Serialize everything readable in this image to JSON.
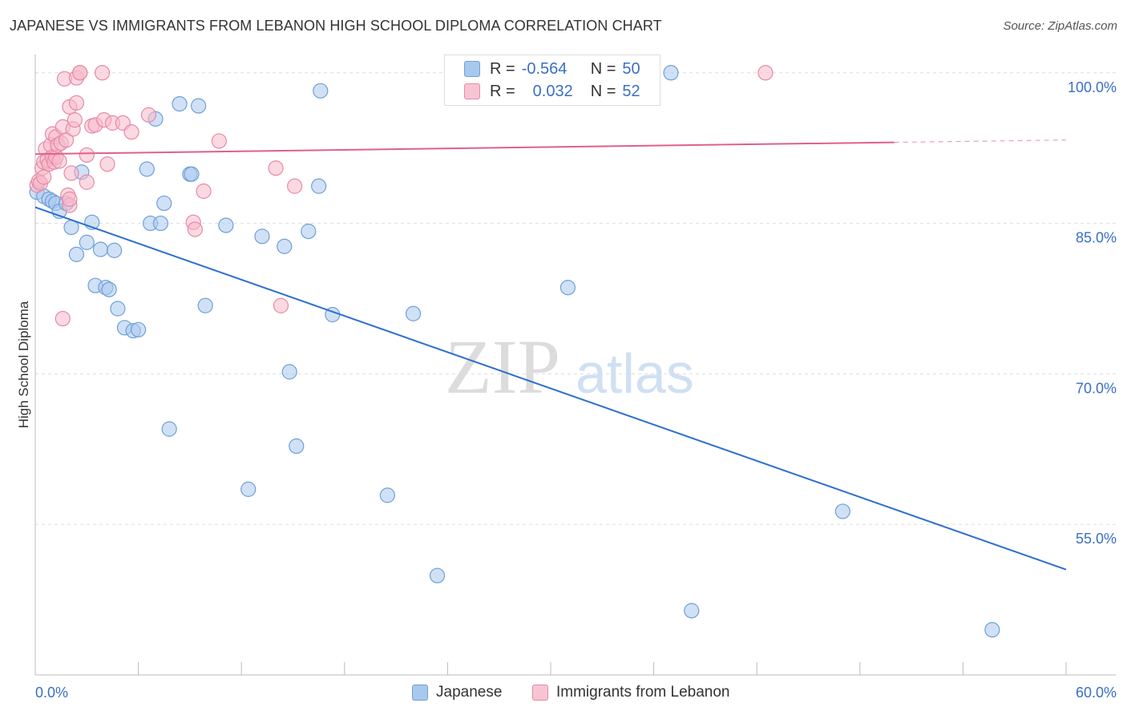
{
  "header": {
    "title": "JAPANESE VS IMMIGRANTS FROM LEBANON HIGH SCHOOL DIPLOMA CORRELATION CHART",
    "source": "Source: ZipAtlas.com"
  },
  "watermark": {
    "zip": "ZIP",
    "atlas": "atlas"
  },
  "legend": {
    "rows": [
      {
        "r_label": "R =",
        "r_value": "-0.564",
        "n_label": "N =",
        "n_value": "50"
      },
      {
        "r_label": "R =",
        "r_value": "0.032",
        "n_label": "N =",
        "n_value": "52"
      }
    ]
  },
  "bottom_legend": {
    "japanese": "Japanese",
    "lebanon": "Immigrants from Lebanon"
  },
  "colors": {
    "blue_fill": "#a9c8ee",
    "blue_stroke": "#6f9fd8",
    "blue_line": "#2c6fd0",
    "pink_fill": "#f7b9cb",
    "pink_stroke": "#e68aa6",
    "pink_line": "#e0608a",
    "tick_label": "#3a6fc4",
    "grid": "#dddddd"
  },
  "chart_data": {
    "type": "scatter",
    "title": "JAPANESE VS IMMIGRANTS FROM LEBANON HIGH SCHOOL DIPLOMA CORRELATION CHART",
    "xlabel": "",
    "ylabel": "High School Diploma",
    "xlim": [
      0,
      60
    ],
    "ylim": [
      40,
      101.5
    ],
    "x_tick_labels": [
      {
        "value": 0,
        "label": "0.0%"
      },
      {
        "value": 60,
        "label": "60.0%"
      }
    ],
    "y_tick_labels": [
      {
        "value": 100,
        "label": "100.0%"
      },
      {
        "value": 85,
        "label": "85.0%"
      },
      {
        "value": 70,
        "label": "70.0%"
      },
      {
        "value": 55,
        "label": "55.0%"
      }
    ],
    "y_grid": [
      100,
      85,
      70,
      55
    ],
    "series": [
      {
        "name": "Japanese",
        "r": -0.564,
        "n": 50,
        "trend": {
          "x0": 0,
          "y0": 86.6,
          "x1": 60,
          "y1": 50.5,
          "solid_until": 60
        },
        "points": [
          [
            0.1,
            88.1
          ],
          [
            0.5,
            87.7
          ],
          [
            0.8,
            87.4
          ],
          [
            1.0,
            87.2
          ],
          [
            1.2,
            87.0
          ],
          [
            1.4,
            86.2
          ],
          [
            1.8,
            87.0
          ],
          [
            2.1,
            84.6
          ],
          [
            2.4,
            81.9
          ],
          [
            2.7,
            90.1
          ],
          [
            3.0,
            83.1
          ],
          [
            3.3,
            85.1
          ],
          [
            3.5,
            78.8
          ],
          [
            3.8,
            82.4
          ],
          [
            4.1,
            78.6
          ],
          [
            4.3,
            78.4
          ],
          [
            4.6,
            82.3
          ],
          [
            4.8,
            76.5
          ],
          [
            5.2,
            74.6
          ],
          [
            5.7,
            74.3
          ],
          [
            6.0,
            74.4
          ],
          [
            6.5,
            90.4
          ],
          [
            6.7,
            85.0
          ],
          [
            7.0,
            95.4
          ],
          [
            7.3,
            85.0
          ],
          [
            7.5,
            87.0
          ],
          [
            7.8,
            64.5
          ],
          [
            8.4,
            96.9
          ],
          [
            9.0,
            89.9
          ],
          [
            9.1,
            89.9
          ],
          [
            9.5,
            96.7
          ],
          [
            9.9,
            76.8
          ],
          [
            11.1,
            84.8
          ],
          [
            12.4,
            58.5
          ],
          [
            13.2,
            83.7
          ],
          [
            14.5,
            82.7
          ],
          [
            14.8,
            70.2
          ],
          [
            15.2,
            62.8
          ],
          [
            15.9,
            84.2
          ],
          [
            16.5,
            88.7
          ],
          [
            16.6,
            98.2
          ],
          [
            17.3,
            75.9
          ],
          [
            20.5,
            57.9
          ],
          [
            22.0,
            76.0
          ],
          [
            23.4,
            49.9
          ],
          [
            31.0,
            78.6
          ],
          [
            37.0,
            100.0
          ],
          [
            38.2,
            46.4
          ],
          [
            47.0,
            56.3
          ],
          [
            55.7,
            44.5
          ]
        ]
      },
      {
        "name": "Immigrants from Lebanon",
        "r": 0.032,
        "n": 52,
        "trend": {
          "x0": 0,
          "y0": 91.9,
          "x1": 60,
          "y1": 93.3,
          "solid_until": 50
        },
        "points": [
          [
            0.1,
            88.8
          ],
          [
            0.2,
            89.2
          ],
          [
            0.3,
            89.0
          ],
          [
            0.4,
            90.5
          ],
          [
            0.5,
            91.1
          ],
          [
            0.6,
            92.4
          ],
          [
            0.7,
            91.3
          ],
          [
            0.8,
            90.9
          ],
          [
            0.9,
            92.8
          ],
          [
            1.0,
            91.6
          ],
          [
            1.0,
            93.9
          ],
          [
            1.1,
            91.1
          ],
          [
            1.2,
            91.6
          ],
          [
            1.2,
            93.6
          ],
          [
            1.3,
            92.8
          ],
          [
            1.4,
            91.2
          ],
          [
            1.5,
            93.0
          ],
          [
            1.6,
            75.5
          ],
          [
            1.6,
            94.6
          ],
          [
            1.7,
            99.4
          ],
          [
            1.8,
            93.3
          ],
          [
            1.9,
            87.8
          ],
          [
            2.0,
            86.8
          ],
          [
            2.0,
            87.4
          ],
          [
            2.0,
            96.6
          ],
          [
            2.1,
            90.0
          ],
          [
            2.2,
            94.4
          ],
          [
            2.3,
            95.3
          ],
          [
            2.4,
            97.0
          ],
          [
            2.4,
            99.5
          ],
          [
            2.6,
            100.0
          ],
          [
            2.6,
            100.0
          ],
          [
            3.0,
            89.1
          ],
          [
            3.0,
            91.8
          ],
          [
            3.3,
            94.7
          ],
          [
            3.5,
            94.8
          ],
          [
            3.9,
            100.0
          ],
          [
            4.0,
            95.3
          ],
          [
            4.2,
            90.9
          ],
          [
            4.5,
            95.0
          ],
          [
            5.1,
            95.0
          ],
          [
            5.6,
            94.1
          ],
          [
            6.6,
            95.8
          ],
          [
            9.2,
            85.1
          ],
          [
            9.3,
            84.4
          ],
          [
            9.8,
            88.2
          ],
          [
            10.7,
            93.2
          ],
          [
            14.0,
            90.5
          ],
          [
            14.3,
            76.8
          ],
          [
            15.1,
            88.7
          ],
          [
            42.5,
            100.0
          ],
          [
            0.5,
            89.6
          ]
        ]
      }
    ]
  }
}
